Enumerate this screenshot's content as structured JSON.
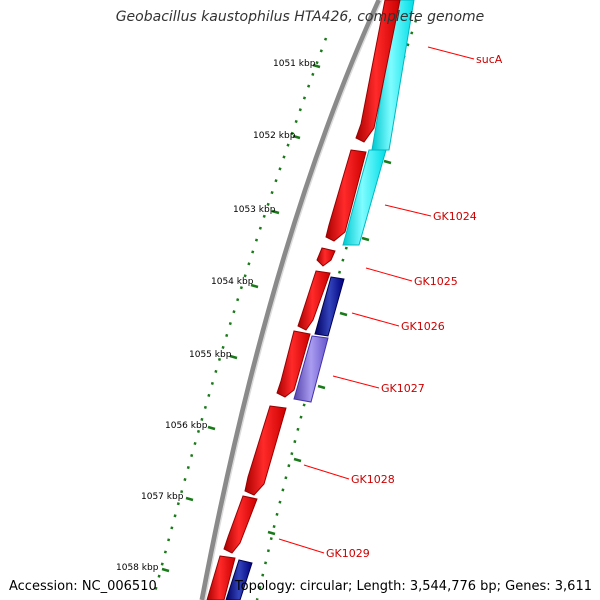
{
  "title": "Geobacillus kaustophilus HTA426, complete genome",
  "accession_text": "Accession: NC_006510",
  "summary_text": "Topology: circular; Length: 3,544,776 bp; Genes: 3,611",
  "colors": {
    "backbone": "#999999",
    "forward_cds": "#ff0000",
    "reverse_cds": "#00ffff",
    "reverse_cds_alt": "#000080",
    "reverse_cds_alt2": "#7766cc",
    "tick": "#1a7a1a",
    "label_line": "#ff0000",
    "label_text": "#cc0000"
  },
  "ticks": [
    {
      "label": "1051 kbp"
    },
    {
      "label": "1052 kbp"
    },
    {
      "label": "1053 kbp"
    },
    {
      "label": "1054 kbp"
    },
    {
      "label": "1055 kbp"
    },
    {
      "label": "1056 kbp"
    },
    {
      "label": "1057 kbp"
    },
    {
      "label": "1058 kbp"
    }
  ],
  "gene_labels": [
    {
      "name": "sucA"
    },
    {
      "name": "GK1024"
    },
    {
      "name": "GK1025"
    },
    {
      "name": "GK1026"
    },
    {
      "name": "GK1027"
    },
    {
      "name": "GK1028"
    },
    {
      "name": "GK1029"
    }
  ]
}
